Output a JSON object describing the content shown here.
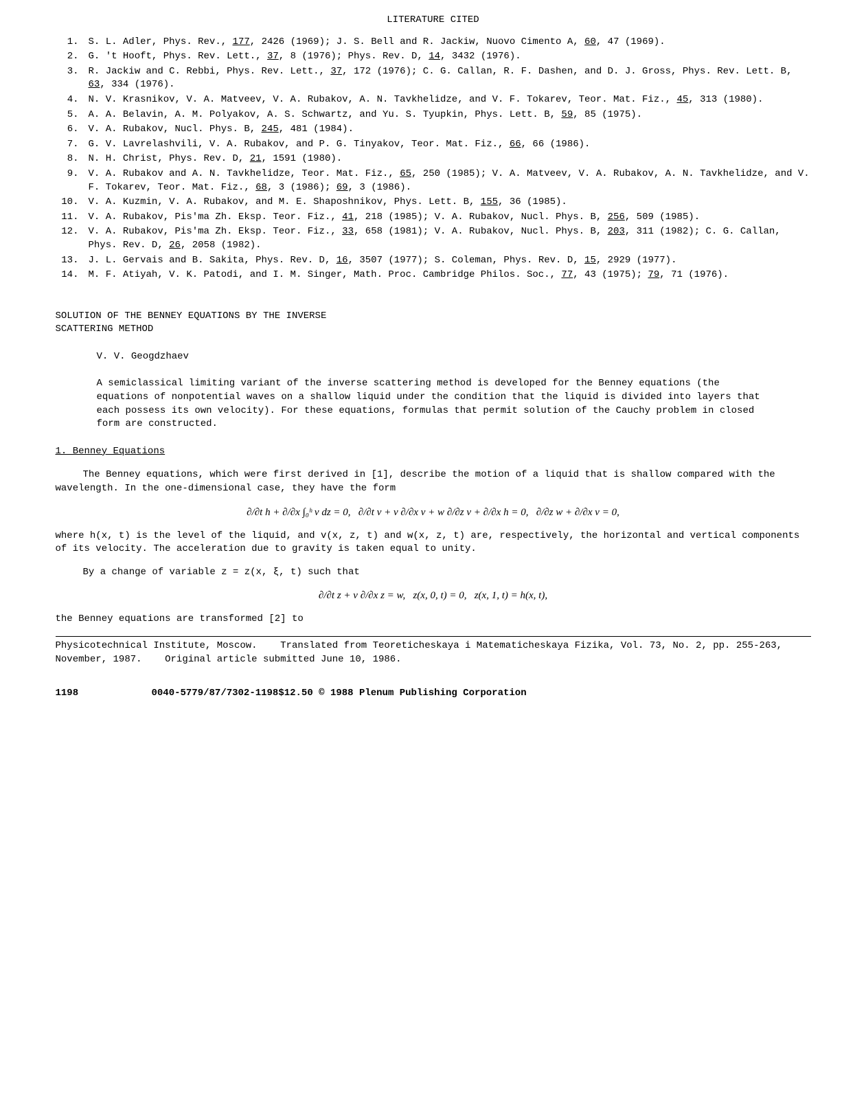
{
  "header": "LITERATURE CITED",
  "refs": [
    {
      "n": "1.",
      "t": "S. L. Adler, Phys. Rev., <span class='u'>177</span>, 2426 (1969);  J. S. Bell and R. Jackiw, Nuovo Cimento A, <span class='u'>60</span>, 47 (1969)."
    },
    {
      "n": "2.",
      "t": "G. 't Hooft, Phys. Rev. Lett., <span class='u'>37</span>, 8 (1976);  Phys. Rev. D, <span class='u'>14</span>, 3432 (1976)."
    },
    {
      "n": "3.",
      "t": "R. Jackiw and C. Rebbi, Phys. Rev. Lett., <span class='u'>37</span>, 172 (1976);  C. G. Callan, R. F. Dashen, and D. J. Gross, Phys. Rev. Lett. B, <span class='u'>63</span>, 334 (1976)."
    },
    {
      "n": "4.",
      "t": "N. V. Krasnikov, V. A. Matveev, V. A. Rubakov, A. N. Tavkhelidze, and V. F. Tokarev, Teor. Mat. Fiz., <span class='u'>45</span>, 313 (1980)."
    },
    {
      "n": "5.",
      "t": "A. A. Belavin, A. M. Polyakov, A. S. Schwartz, and Yu. S. Tyupkin, Phys. Lett. B, <span class='u'>59</span>, 85 (1975)."
    },
    {
      "n": "6.",
      "t": "V. A. Rubakov, Nucl. Phys. B, <span class='u'>245</span>, 481 (1984)."
    },
    {
      "n": "7.",
      "t": "G. V. Lavrelashvili, V. A. Rubakov, and P. G. Tinyakov, Teor. Mat. Fiz., <span class='u'>66</span>, 66 (1986)."
    },
    {
      "n": "8.",
      "t": "N. H. Christ, Phys. Rev. D, <span class='u'>21</span>, 1591 (1980)."
    },
    {
      "n": "9.",
      "t": "V. A. Rubakov and A. N. Tavkhelidze, Teor. Mat. Fiz., <span class='u'>65</span>, 250 (1985);  V. A. Matveev, V. A. Rubakov, A. N. Tavkhelidze, and V. F. Tokarev, Teor. Mat. Fiz., <span class='u'>68</span>, 3 (1986); <span class='u'>69</span>, 3 (1986)."
    },
    {
      "n": "10.",
      "t": "V. A. Kuzmin, V. A. Rubakov, and M. E. Shaposhnikov, Phys. Lett. B, <span class='u'>155</span>, 36 (1985)."
    },
    {
      "n": "11.",
      "t": "V. A. Rubakov, Pis'ma Zh. Eksp. Teor. Fiz., <span class='u'>41</span>, 218 (1985);  V. A. Rubakov, Nucl. Phys. B, <span class='u'>256</span>, 509 (1985)."
    },
    {
      "n": "12.",
      "t": "V. A. Rubakov, Pis'ma Zh. Eksp. Teor. Fiz., <span class='u'>33</span>, 658 (1981);  V. A. Rubakov, Nucl. Phys. B, <span class='u'>203</span>, 311 (1982);  C. G. Callan, Phys. Rev. D, <span class='u'>26</span>, 2058 (1982)."
    },
    {
      "n": "13.",
      "t": "J. L. Gervais and B. Sakita, Phys. Rev. D, <span class='u'>16</span>, 3507 (1977);  S. Coleman, Phys. Rev. D, <span class='u'>15</span>, 2929 (1977)."
    },
    {
      "n": "14.",
      "t": "M. F. Atiyah, V. K. Patodi, and I. M. Singer, Math. Proc. Cambridge Philos. Soc., <span class='u'>77</span>, 43 (1975); <span class='u'>79</span>, 71 (1976)."
    }
  ],
  "article": {
    "title1": "SOLUTION OF THE BENNEY EQUATIONS BY THE INVERSE",
    "title2": "SCATTERING METHOD",
    "author": "V. V. Geogdzhaev",
    "abstract": "A semiclassical limiting variant of the inverse scattering method is developed for the Benney equations (the equations of nonpotential waves on a shallow liquid under the condition that the liquid is divided into layers that each possess its own velocity).  For these equations, formulas that permit solution of the Cauchy problem in closed form are constructed.",
    "subhead": "1.  Benney Equations",
    "para1": "The Benney equations, which were first derived in [1], describe the motion of a liquid that is shallow compared with the wavelength.  In the one-dimensional case, they have the form",
    "formula1": "∂/∂t h + ∂/∂x ∫₀ʰ v dz = 0,&nbsp;&nbsp;&nbsp;∂/∂t v + v ∂/∂x v + w ∂/∂z v + ∂/∂x h = 0,&nbsp;&nbsp;&nbsp;∂/∂z w + ∂/∂x v = 0,",
    "para2": "where h(x, t) is the level of the liquid, and v(x, z, t) and w(x, z, t) are, respectively, the horizontal and vertical components of its velocity.  The acceleration due to gravity is taken equal to unity.",
    "para3": "By a change of variable z = z(x, ξ, t) such that",
    "formula2": "∂/∂t z + v ∂/∂x z = w,&nbsp;&nbsp;&nbsp;z(x, 0, t) = 0,&nbsp;&nbsp;&nbsp;z(x, 1, t) = h(x, t),",
    "para4": "the Benney equations are transformed [2] to",
    "footnote": "Physicotechnical Institute, Moscow.&nbsp;&nbsp;&nbsp;&nbsp;Translated from Teoreticheskaya i Matematicheskaya Fizika, Vol. 73, No. 2, pp. 255-263, November, 1987.&nbsp;&nbsp;&nbsp;&nbsp;Original article submitted June 10, 1986."
  },
  "footer": {
    "page": "1198",
    "copyright": "0040-5779/87/7302-1198$12.50 © 1988 Plenum Publishing Corporation"
  }
}
